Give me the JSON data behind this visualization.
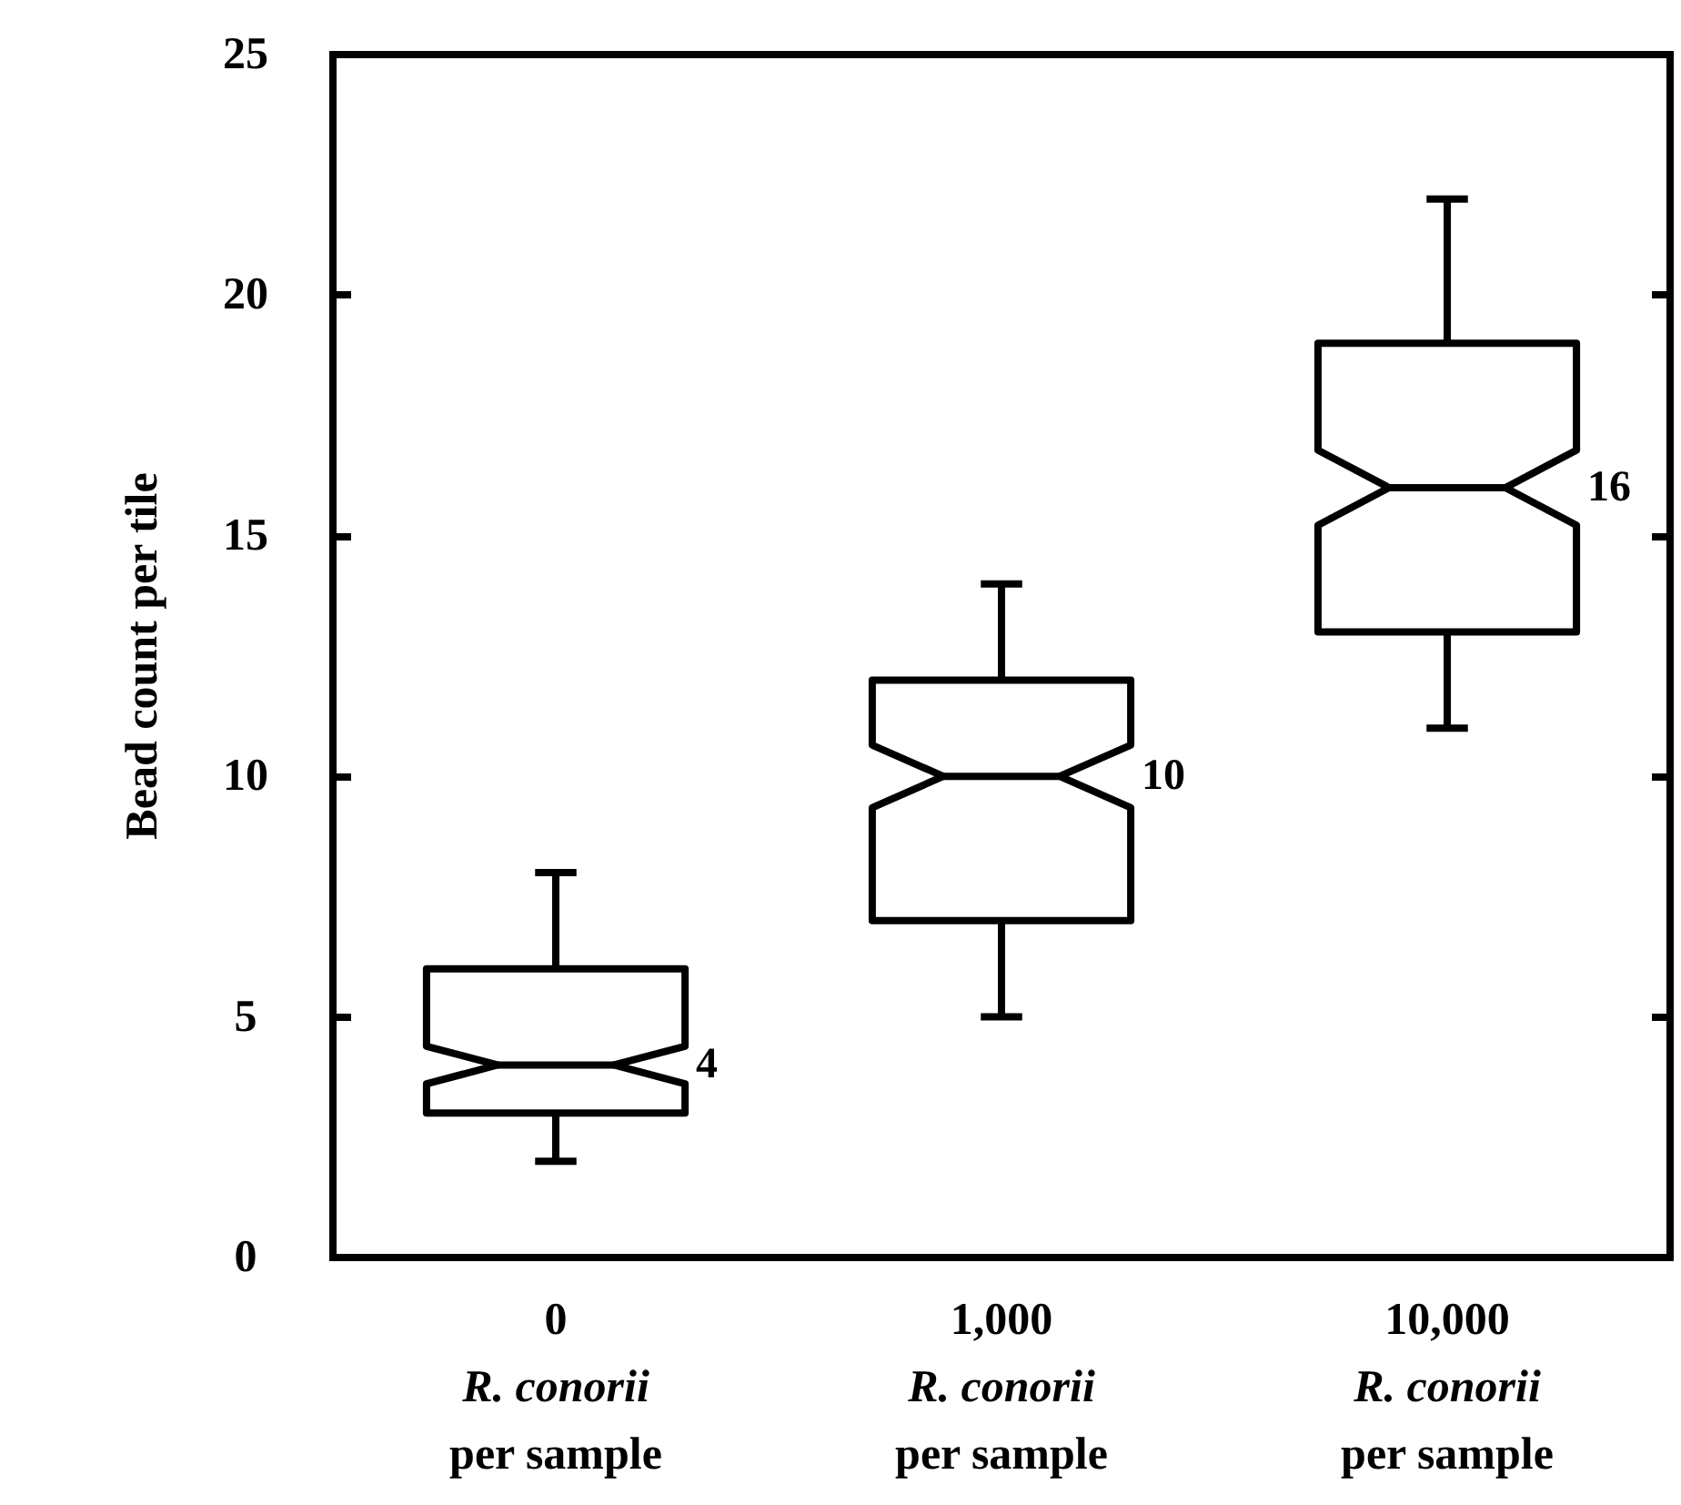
{
  "chart_data": {
    "type": "box",
    "ylabel": "Bead count per tile",
    "categories": [
      "0\nR. conorii\nper sample",
      "1,000\nR. conorii\nper sample",
      "10,000\nR. conorii\nper sample"
    ],
    "boxes": [
      {
        "low": 2,
        "q1": 3,
        "median": 4,
        "q3": 6,
        "high": 8
      },
      {
        "low": 5,
        "q1": 7,
        "median": 10,
        "q3": 12,
        "high": 14
      },
      {
        "low": 11,
        "q1": 13,
        "median": 16,
        "q3": 19,
        "high": 22
      }
    ],
    "value_labels": [
      "4",
      "10",
      "16"
    ],
    "color": "#000000",
    "ylim": [
      0,
      25
    ],
    "yticks": [
      0,
      5,
      10,
      15,
      20,
      25
    ],
    "grid": false
  }
}
